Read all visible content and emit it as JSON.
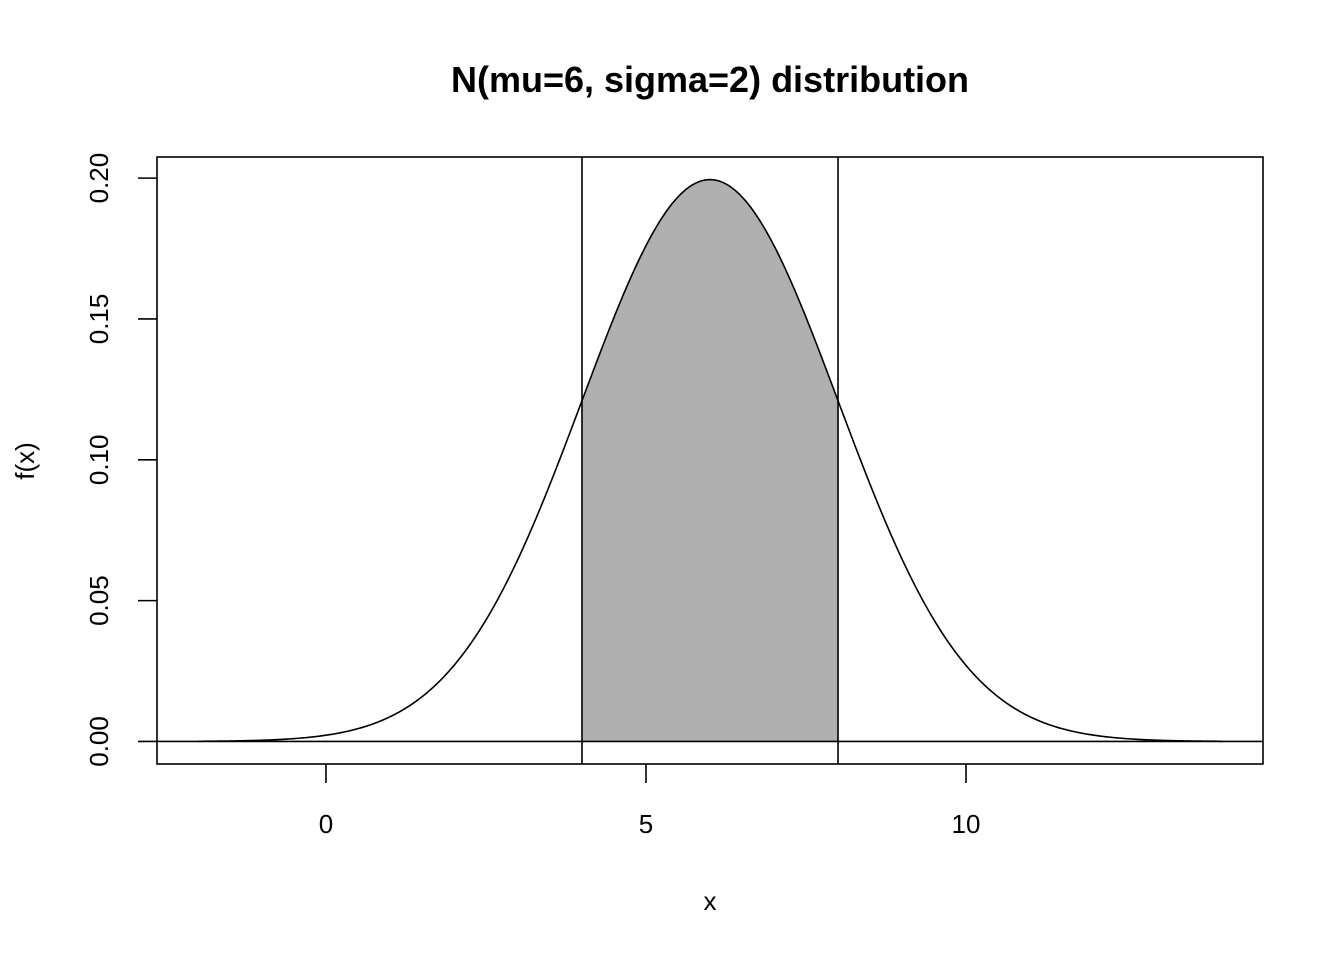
{
  "chart_data": {
    "type": "area",
    "title": "N(mu=6, sigma=2) distribution",
    "xlabel": "x",
    "ylabel": "f(x)",
    "distribution": {
      "family": "normal",
      "mu": 6,
      "sigma": 2
    },
    "x_range": [
      -2,
      14
    ],
    "shaded_interval": [
      4,
      8
    ],
    "shade_color": "#b0b0b0",
    "line_color": "#000000",
    "xlim": [
      -2.64,
      14.64
    ],
    "ylim": [
      -0.008,
      0.2075
    ],
    "x_ticks": [
      {
        "value": 0,
        "label": "0"
      },
      {
        "value": 5,
        "label": "5"
      },
      {
        "value": 10,
        "label": "10"
      }
    ],
    "y_ticks": [
      {
        "value": 0.0,
        "label": "0.00"
      },
      {
        "value": 0.05,
        "label": "0.05"
      },
      {
        "value": 0.1,
        "label": "0.10"
      },
      {
        "value": 0.15,
        "label": "0.15"
      },
      {
        "value": 0.2,
        "label": "0.20"
      }
    ],
    "vertical_lines": [
      4,
      8
    ],
    "horizontal_lines": [
      0
    ],
    "grid": false,
    "legend": "none"
  }
}
